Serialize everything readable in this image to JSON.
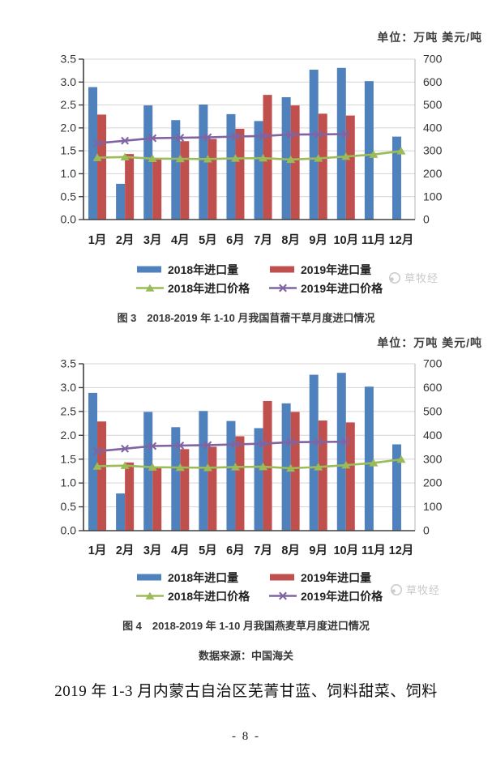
{
  "watermark": {
    "text": "草牧经"
  },
  "source_line": "数据来源：中国海关",
  "heading": "2019 年 1-3 月内蒙古自治区芜菁甘蓝、饲料甜菜、饲料",
  "page_number": "- 8 -",
  "chart_data": [
    {
      "id": "figure-3",
      "type": "bar",
      "unit_label": "单位：万吨 美元/吨",
      "caption": "图 3　2018-2019 年 1-10 月我国苜蓿干草月度进口情况",
      "categories": [
        "1月",
        "2月",
        "3月",
        "4月",
        "5月",
        "6月",
        "7月",
        "8月",
        "9月",
        "10月",
        "11月",
        "12月"
      ],
      "left_axis": {
        "min": 0,
        "max": 3.5,
        "step": 0.5
      },
      "right_axis": {
        "min": 0,
        "max": 700,
        "step": 100
      },
      "grid": true,
      "legend_position": "bottom",
      "series": [
        {
          "name": "2018年进口量",
          "type": "bar",
          "axis": "left",
          "color": "#4f81bd",
          "values": [
            2.89,
            0.78,
            2.49,
            2.17,
            2.51,
            2.3,
            2.15,
            2.67,
            3.27,
            3.31,
            3.02,
            1.81
          ]
        },
        {
          "name": "2019年进口量",
          "type": "bar",
          "axis": "left",
          "color": "#c0504d",
          "values": [
            2.29,
            1.43,
            1.32,
            1.71,
            1.76,
            1.98,
            2.72,
            2.49,
            2.31,
            2.27,
            null,
            null
          ]
        },
        {
          "name": "2018年进口价格",
          "type": "line",
          "axis": "right",
          "color": "#9bbb59",
          "marker": "triangle",
          "values": [
            270,
            273,
            266,
            265,
            264,
            267,
            268,
            262,
            267,
            275,
            284,
            299
          ]
        },
        {
          "name": "2019年进口价格",
          "type": "line",
          "axis": "right",
          "color": "#8064a2",
          "marker": "x",
          "values": [
            333,
            344,
            355,
            357,
            359,
            362,
            365,
            371,
            372,
            373,
            null,
            null
          ]
        }
      ]
    },
    {
      "id": "figure-4",
      "type": "bar",
      "unit_label": "单位：万吨 美元/吨",
      "caption": "图 4　2018-2019 年 1-10 月我国燕麦草月度进口情况",
      "categories": [
        "1月",
        "2月",
        "3月",
        "4月",
        "5月",
        "6月",
        "7月",
        "8月",
        "9月",
        "10月",
        "11月",
        "12月"
      ],
      "left_axis": {
        "min": 0,
        "max": 3.5,
        "step": 0.5
      },
      "right_axis": {
        "min": 0,
        "max": 700,
        "step": 100
      },
      "grid": true,
      "legend_position": "bottom",
      "series": [
        {
          "name": "2018年进口量",
          "type": "bar",
          "axis": "left",
          "color": "#4f81bd",
          "values": [
            2.89,
            0.78,
            2.49,
            2.17,
            2.51,
            2.3,
            2.15,
            2.67,
            3.27,
            3.31,
            3.02,
            1.81
          ]
        },
        {
          "name": "2019年进口量",
          "type": "bar",
          "axis": "left",
          "color": "#c0504d",
          "values": [
            2.29,
            1.43,
            1.32,
            1.71,
            1.76,
            1.98,
            2.72,
            2.49,
            2.31,
            2.27,
            null,
            null
          ]
        },
        {
          "name": "2018年进口价格",
          "type": "line",
          "axis": "right",
          "color": "#9bbb59",
          "marker": "triangle",
          "values": [
            270,
            273,
            266,
            265,
            264,
            267,
            268,
            262,
            267,
            275,
            284,
            299
          ]
        },
        {
          "name": "2019年进口价格",
          "type": "line",
          "axis": "right",
          "color": "#8064a2",
          "marker": "x",
          "values": [
            333,
            344,
            355,
            357,
            359,
            362,
            365,
            371,
            372,
            373,
            null,
            null
          ]
        }
      ]
    }
  ]
}
